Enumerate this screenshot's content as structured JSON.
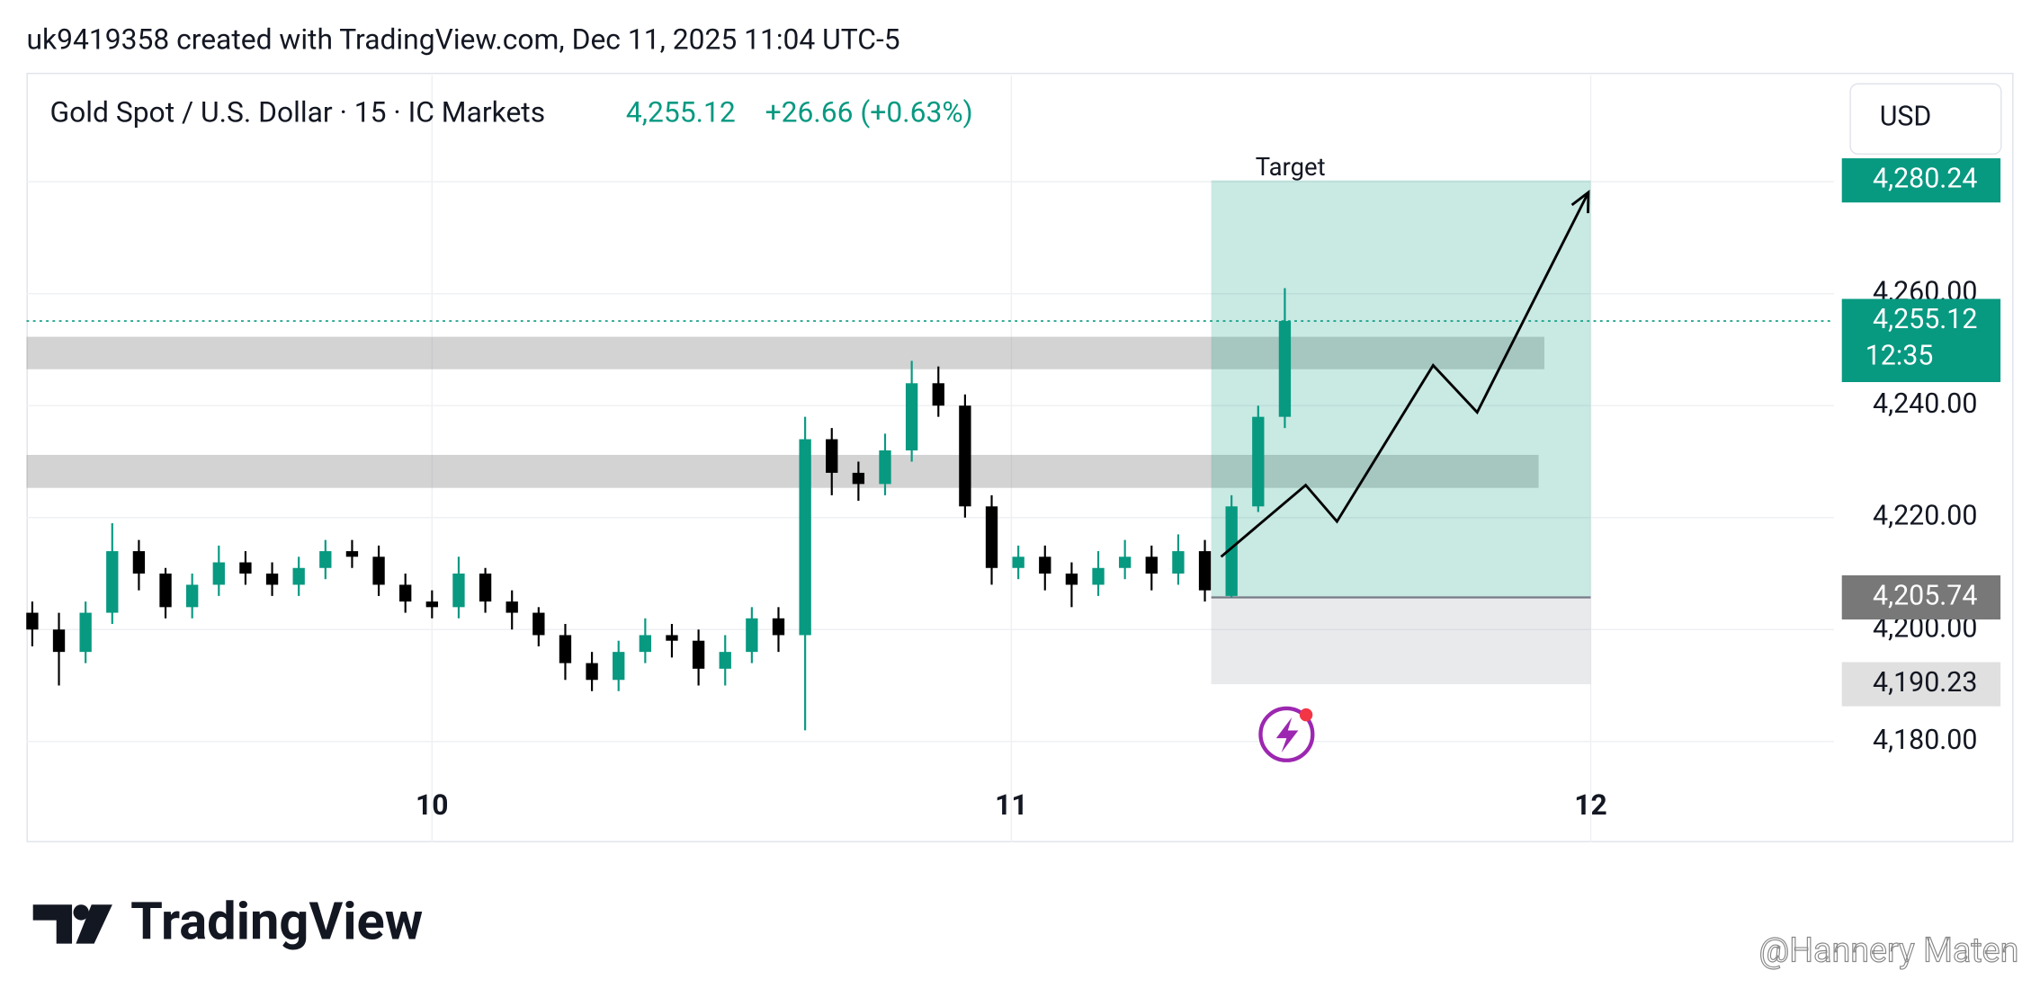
{
  "header": {
    "attribution": "uk9419358 created with TradingView.com, Dec 11, 2025 11:04 UTC-5"
  },
  "chart_data": {
    "type": "candlestick",
    "title": "Gold Spot / U.S. Dollar · 15 · IC Markets",
    "last_price": {
      "value": 4255.12,
      "label": "4,255.12"
    },
    "change": "+26.66 (+0.63%)",
    "currency": "USD",
    "countdown": "12:35",
    "x": [
      9.31,
      9.356,
      9.402,
      9.448,
      9.494,
      9.54,
      9.586,
      9.632,
      9.678,
      9.724,
      9.77,
      9.816,
      9.862,
      9.908,
      9.954,
      10.0,
      10.046,
      10.092,
      10.138,
      10.184,
      10.23,
      10.276,
      10.322,
      10.368,
      10.414,
      10.46,
      10.506,
      10.552,
      10.598,
      10.644,
      10.69,
      10.736,
      10.782,
      10.828,
      10.874,
      10.92,
      10.966,
      11.012,
      11.058,
      11.104,
      11.15,
      11.196,
      11.242,
      11.288,
      11.334,
      11.38,
      11.426,
      11.472
    ],
    "open": [
      4203,
      4200,
      4196,
      4203,
      4214,
      4210,
      4204,
      4208,
      4212,
      4210,
      4208,
      4211,
      4214,
      4213,
      4208,
      4205,
      4204,
      4210,
      4205,
      4203,
      4199,
      4194,
      4191,
      4196,
      4199,
      4198,
      4193,
      4196,
      4202,
      4199,
      4234,
      4228,
      4226,
      4232,
      4244,
      4240,
      4222,
      4211,
      4213,
      4210,
      4208,
      4211,
      4213,
      4210,
      4214,
      4206,
      4222,
      4238
    ],
    "high": [
      4205,
      4203,
      4205,
      4219,
      4216,
      4211,
      4210,
      4215,
      4214,
      4212,
      4213,
      4216,
      4216,
      4215,
      4210,
      4207,
      4213,
      4211,
      4207,
      4204,
      4201,
      4196,
      4198,
      4202,
      4201,
      4200,
      4199,
      4204,
      4204,
      4238,
      4236,
      4230,
      4235,
      4248,
      4247,
      4242,
      4224,
      4215,
      4215,
      4212,
      4214,
      4216,
      4215,
      4217,
      4216,
      4224,
      4240,
      4261
    ],
    "low": [
      4197,
      4190,
      4194,
      4201,
      4207,
      4202,
      4202,
      4206,
      4208,
      4206,
      4206,
      4209,
      4211,
      4206,
      4203,
      4202,
      4202,
      4203,
      4200,
      4197,
      4191,
      4189,
      4189,
      4194,
      4195,
      4190,
      4190,
      4194,
      4196,
      4182,
      4224,
      4223,
      4224,
      4230,
      4238,
      4220,
      4208,
      4209,
      4207,
      4204,
      4206,
      4209,
      4207,
      4208,
      4205,
      4205.74,
      4221,
      4236
    ],
    "close": [
      4200,
      4196,
      4203,
      4214,
      4210,
      4204,
      4208,
      4212,
      4210,
      4208,
      4211,
      4214,
      4213,
      4208,
      4205,
      4204,
      4210,
      4205,
      4203,
      4199,
      4194,
      4191,
      4196,
      4199,
      4198,
      4193,
      4196,
      4202,
      4199,
      4234,
      4228,
      4226,
      4232,
      4244,
      4240,
      4222,
      4211,
      4213,
      4210,
      4208,
      4211,
      4213,
      4210,
      4214,
      4207,
      4222,
      4238,
      4255.12
    ],
    "up_color": "#089981",
    "down_color": "#000000",
    "xlim": [
      9.3,
      12.42
    ],
    "xticks": [
      10,
      11,
      12
    ],
    "ylim": [
      4162,
      4299
    ],
    "yticks": [
      {
        "value": 4180,
        "label": "4,180.00"
      },
      {
        "value": 4200,
        "label": "4,200.00"
      },
      {
        "value": 4220,
        "label": "4,220.00"
      },
      {
        "value": 4240,
        "label": "4,240.00"
      },
      {
        "value": 4260,
        "label": "4,260.00"
      },
      {
        "value": 4280,
        "label": "4,280.00"
      }
    ],
    "grid": true,
    "zones": [
      {
        "x": [
          9.3,
          11.92
        ],
        "y": [
          4246.5,
          4252.3
        ]
      },
      {
        "x": [
          9.3,
          11.91
        ],
        "y": [
          4225.3,
          4231.2
        ]
      }
    ],
    "position": {
      "x": [
        11.345,
        12.0
      ],
      "label": "Target",
      "target": {
        "value": 4280.24,
        "label": "4,280.24"
      },
      "entry": {
        "value": 4205.74,
        "label": "4,205.74"
      },
      "stop": {
        "value": 4190.23,
        "label": "4,190.23"
      }
    },
    "projection": {
      "x": [
        11.362,
        11.508,
        11.562,
        11.728,
        11.804,
        11.996
      ],
      "y": [
        4213.0,
        4225.8,
        4219.3,
        4247.2,
        4238.8,
        4278.1
      ]
    }
  },
  "footer": {
    "logo": "TradingView",
    "watermark": "@Hannery Maten"
  }
}
